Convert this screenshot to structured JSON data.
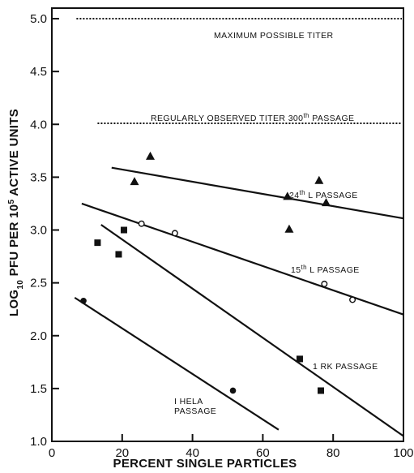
{
  "chart_data": {
    "type": "scatter",
    "xlabel": "PERCENT SINGLE PARTICLES",
    "ylabel_parts": {
      "pre": "LOG",
      "sub": "10",
      "mid": " PFU PER 10",
      "sup": "5",
      "post": " ACTIVE UNITS"
    },
    "xlim": [
      0,
      100
    ],
    "ylim": [
      1.0,
      5.1
    ],
    "x_ticks": [
      0,
      20,
      40,
      60,
      80,
      100
    ],
    "x_tick_labels": [
      "0",
      "20",
      "40",
      "60",
      "80",
      "100"
    ],
    "y_ticks": [
      1.0,
      1.5,
      2.0,
      2.5,
      3.0,
      3.5,
      4.0,
      4.5,
      5.0
    ],
    "y_tick_labels": [
      "1.0",
      "1.5",
      "2.0",
      "2.5",
      "3.0",
      "3.5",
      "4.0",
      "4.5",
      "5.0"
    ],
    "grid": false,
    "reference_lines": [
      {
        "label": "MAXIMUM POSSIBLE TITER",
        "y": 5.0,
        "x_start": 7,
        "x_end": 100
      },
      {
        "label_main": "REGULARLY OBSERVED TITER 300",
        "label_sup": "th",
        "label_post": " PASSAGE",
        "y": 4.01,
        "x_start": 13,
        "x_end": 100
      }
    ],
    "series": [
      {
        "label_parts": {
          "pre": "24",
          "sup": "th",
          "post": " L PASSAGE"
        },
        "marker": "triangle",
        "x": [
          23.5,
          28,
          67,
          67.5,
          76,
          78
        ],
        "y": [
          3.46,
          3.7,
          3.32,
          3.01,
          3.47,
          3.26
        ],
        "fit": {
          "x": [
            17,
            100
          ],
          "y": [
            3.59,
            3.11
          ]
        }
      },
      {
        "label_parts": {
          "pre": "15",
          "sup": "th",
          "post": " L PASSAGE"
        },
        "marker": "open-circle",
        "x": [
          25.5,
          35,
          77.5,
          85.5
        ],
        "y": [
          3.06,
          2.97,
          2.49,
          2.34
        ],
        "fit": {
          "x": [
            8.5,
            100
          ],
          "y": [
            3.25,
            2.2
          ]
        }
      },
      {
        "label_parts": {
          "pre": "1 RK PASSAGE",
          "sup": "",
          "post": ""
        },
        "marker": "square",
        "x": [
          13,
          19,
          20.5,
          70.5,
          76.5
        ],
        "y": [
          2.88,
          2.77,
          3.0,
          1.78,
          1.48
        ],
        "fit": {
          "x": [
            14,
            100
          ],
          "y": [
            3.05,
            1.05
          ]
        }
      },
      {
        "label_lines": [
          "I HELA",
          "PASSAGE"
        ],
        "marker": "filled-circle",
        "x": [
          9,
          51.5
        ],
        "y": [
          2.33,
          1.48
        ],
        "fit": {
          "x": [
            6.5,
            64.5
          ],
          "y": [
            2.36,
            1.11
          ]
        }
      }
    ]
  }
}
